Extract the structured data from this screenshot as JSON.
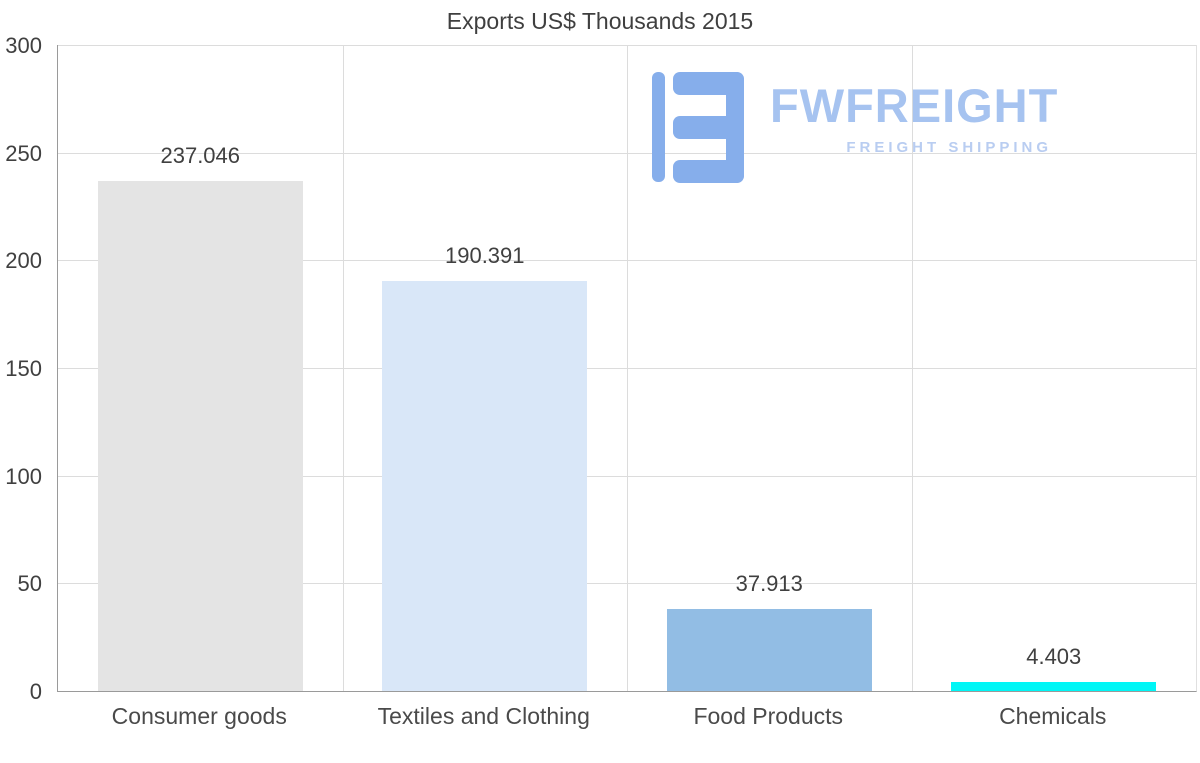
{
  "title": "Exports US$ Thousands 2015",
  "watermark": {
    "brand": "FWFREIGHT",
    "tagline": "FREIGHT SHIPPING",
    "logo_color": "#86aeeb",
    "text_color": "#a6c3f0"
  },
  "chart_data": {
    "type": "bar",
    "title": "Exports US$ Thousands 2015",
    "categories": [
      "Consumer goods",
      "Textiles and Clothing",
      "Food Products",
      "Chemicals"
    ],
    "values": [
      237.046,
      190.391,
      37.913,
      4.403
    ],
    "value_labels": [
      "237.046",
      "190.391",
      "37.913",
      "4.403"
    ],
    "bar_colors": [
      "#e4e4e4",
      "#d9e7f8",
      "#92bde4",
      "#00f6f6"
    ],
    "xlabel": "",
    "ylabel": "",
    "ylim": [
      0,
      300
    ],
    "yticks": [
      0,
      50,
      100,
      150,
      200,
      250,
      300
    ],
    "grid": true,
    "legend": false
  }
}
